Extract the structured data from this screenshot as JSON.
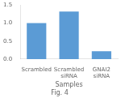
{
  "chart_data": {
    "type": "bar",
    "title": "Fig. 4",
    "x_label": "Samples",
    "categories": [
      "Scrambled",
      "Scrambled siRNA",
      "GNAI2 siRNA"
    ],
    "values": [
      1.0,
      1.32,
      0.22
    ],
    "color": "#5b9bd5",
    "ylim": [
      0,
      1.5
    ],
    "yticks": [
      {
        "value": 0,
        "label": "0.0"
      },
      0.5,
      {
        "value": 1,
        "label": "1.0"
      },
      1.5
    ],
    "grid": false
  }
}
